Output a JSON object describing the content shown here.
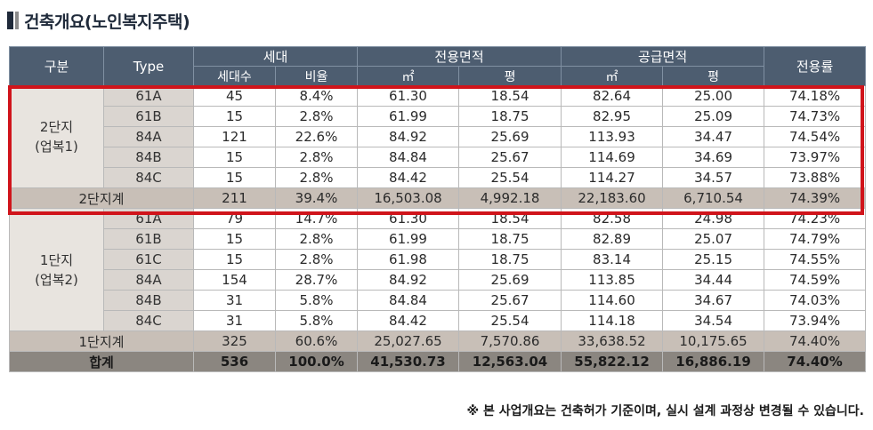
{
  "title": "건축개요(노인복지주택)",
  "headers": {
    "category": "구분",
    "type": "Type",
    "households": "세대",
    "exclusive_area": "전용면적",
    "supply_area": "공급면적",
    "exclusive_ratio": "전용률",
    "household_count": "세대수",
    "ratio": "비율",
    "sqm": "㎡",
    "pyeong": "평"
  },
  "groups": [
    {
      "label_line1": "2단지",
      "label_line2": "(업복1)",
      "rows": [
        [
          "61A",
          "45",
          "8.4%",
          "61.30",
          "18.54",
          "82.64",
          "25.00",
          "74.18%"
        ],
        [
          "61B",
          "15",
          "2.8%",
          "61.99",
          "18.75",
          "82.95",
          "25.09",
          "74.73%"
        ],
        [
          "84A",
          "121",
          "22.6%",
          "84.92",
          "25.69",
          "113.93",
          "34.47",
          "74.54%"
        ],
        [
          "84B",
          "15",
          "2.8%",
          "84.84",
          "25.67",
          "114.69",
          "34.69",
          "73.97%"
        ],
        [
          "84C",
          "15",
          "2.8%",
          "84.42",
          "25.54",
          "114.27",
          "34.57",
          "73.88%"
        ]
      ],
      "subtotal": [
        "2단지계",
        "211",
        "39.4%",
        "16,503.08",
        "4,992.18",
        "22,183.60",
        "6,710.54",
        "74.39%"
      ]
    },
    {
      "label_line1": "1단지",
      "label_line2": "(업복2)",
      "rows": [
        [
          "61A",
          "79",
          "14.7%",
          "61.30",
          "18.54",
          "82.58",
          "24.98",
          "74.23%"
        ],
        [
          "61B",
          "15",
          "2.8%",
          "61.99",
          "18.75",
          "82.89",
          "25.07",
          "74.79%"
        ],
        [
          "61C",
          "15",
          "2.8%",
          "61.98",
          "18.75",
          "83.14",
          "25.15",
          "74.55%"
        ],
        [
          "84A",
          "154",
          "28.7%",
          "84.92",
          "25.69",
          "113.85",
          "34.44",
          "74.59%"
        ],
        [
          "84B",
          "31",
          "5.8%",
          "84.84",
          "25.67",
          "114.60",
          "34.67",
          "74.03%"
        ],
        [
          "84C",
          "31",
          "5.8%",
          "84.42",
          "25.54",
          "114.18",
          "34.54",
          "73.94%"
        ]
      ],
      "subtotal": [
        "1단지계",
        "325",
        "60.6%",
        "25,027.65",
        "7,570.86",
        "33,638.52",
        "10,175.65",
        "74.40%"
      ]
    }
  ],
  "total": [
    "합계",
    "536",
    "100.0%",
    "41,530.73",
    "12,563.04",
    "55,822.12",
    "16,886.19",
    "74.40%"
  ],
  "note": "※ 본 사업개요는 건축허가 기준이며, 실시 설계 과정상 변경될 수 있습니다."
}
